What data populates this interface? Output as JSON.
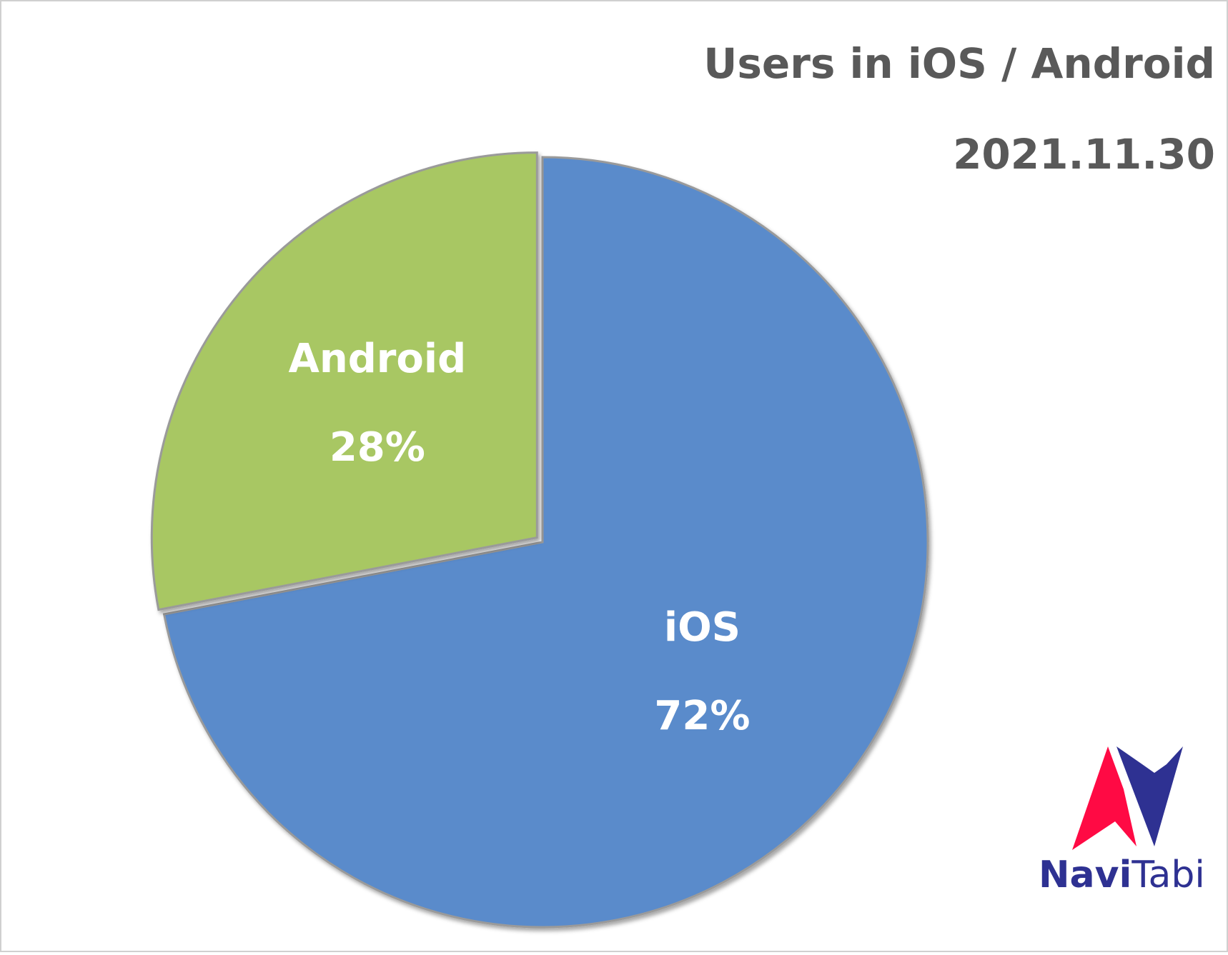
{
  "chart_data": {
    "type": "pie",
    "title": "Users in iOS / Android",
    "subtitle": "2021.11.30",
    "categories": [
      "iOS",
      "Android"
    ],
    "values": [
      72,
      28
    ],
    "value_labels": [
      "72%",
      "28%"
    ],
    "colors": [
      "#5a8bcb",
      "#a8c764"
    ]
  },
  "logo_text": [
    "Navi",
    "Tabi"
  ]
}
